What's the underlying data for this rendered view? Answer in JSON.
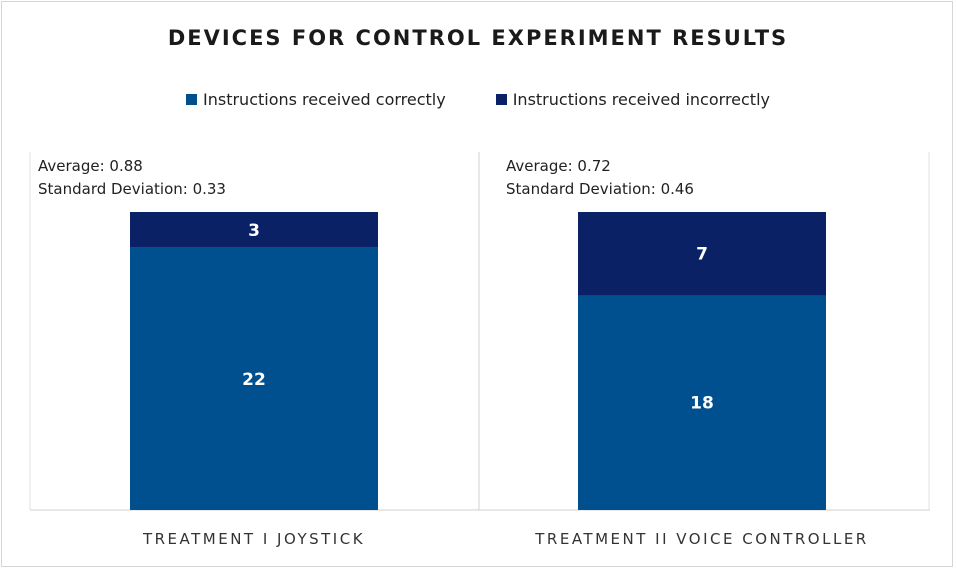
{
  "chart_data": {
    "type": "bar",
    "stacked": true,
    "title": "DEVICES FOR CONTROL EXPERIMENT RESULTS",
    "categories": [
      "TREATMENT I JOYSTICK",
      "TREATMENT II VOICE CONTROLLER"
    ],
    "series": [
      {
        "name": "Instructions received correctly",
        "values": [
          22,
          18
        ],
        "color": "#00508f"
      },
      {
        "name": "Instructions received incorrectly",
        "values": [
          3,
          7
        ],
        "color": "#0a2165"
      }
    ],
    "stats": [
      {
        "average": "Average: 0.88",
        "std": "Standard Deviation: 0.33"
      },
      {
        "average": "Average: 0.72",
        "std": "Standard Deviation: 0.46"
      }
    ],
    "legend_position": "top",
    "grid": false,
    "ylim": [
      0,
      25
    ]
  }
}
